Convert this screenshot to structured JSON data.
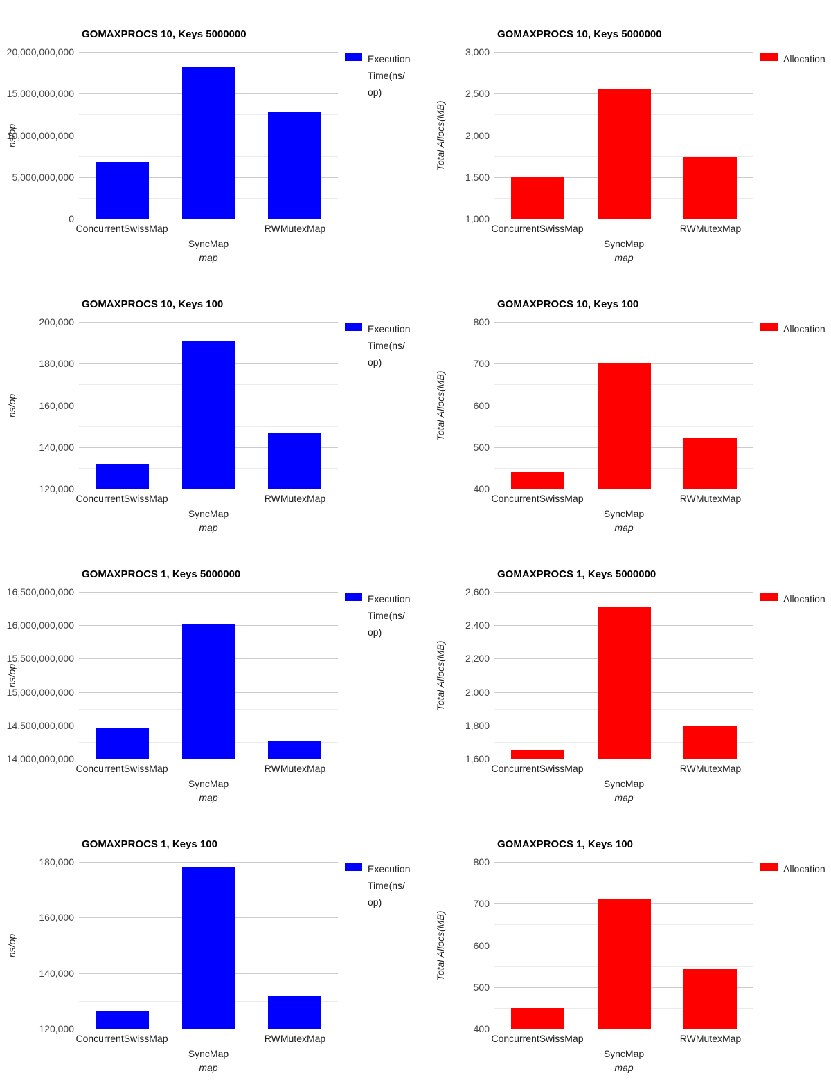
{
  "page": {
    "background": "#ffffff",
    "colors": {
      "execution_time_series": "#0000ff",
      "allocation_series": "#ff0000",
      "grid_major": "#cccccc",
      "grid_minor": "#ebebeb",
      "baseline": "#333333",
      "tick_text": "#444444",
      "label_text": "#222222",
      "title_text": "#000000"
    }
  },
  "chart_data": [
    {
      "type": "bar",
      "title": "GOMAXPROCS 10, Keys 5000000",
      "categories": [
        "ConcurrentSwissMap",
        "SyncMap",
        "RWMutexMap"
      ],
      "values": [
        6800000000,
        18200000000,
        12800000000
      ],
      "series_name": "Execution Time(ns/op)",
      "legend_lines": [
        "Execution",
        "Time(ns/",
        "op)"
      ],
      "legend_position": "right",
      "color": "#0000ff",
      "xlabel": "map",
      "ylabel": "ns/op",
      "ylim": [
        0,
        20000000000
      ],
      "ytick_step": 5000000000,
      "grid": true
    },
    {
      "type": "bar",
      "title": "GOMAXPROCS 10, Keys 5000000",
      "categories": [
        "ConcurrentSwissMap",
        "SyncMap",
        "RWMutexMap"
      ],
      "values": [
        1505,
        2550,
        1740
      ],
      "series_name": "Allocation",
      "legend_lines": [
        "Allocation"
      ],
      "legend_position": "right",
      "color": "#ff0000",
      "xlabel": "map",
      "ylabel": "Total Allocs(MB)",
      "ylim": [
        1000,
        3000
      ],
      "ytick_step": 500,
      "grid": true
    },
    {
      "type": "bar",
      "title": "GOMAXPROCS 10, Keys 100",
      "categories": [
        "ConcurrentSwissMap",
        "SyncMap",
        "RWMutexMap"
      ],
      "values": [
        132000,
        191000,
        147000
      ],
      "series_name": "Execution Time(ns/op)",
      "legend_lines": [
        "Execution",
        "Time(ns/",
        "op)"
      ],
      "legend_position": "right",
      "color": "#0000ff",
      "xlabel": "map",
      "ylabel": "ns/op",
      "ylim": [
        120000,
        200000
      ],
      "ytick_step": 20000,
      "grid": true
    },
    {
      "type": "bar",
      "title": "GOMAXPROCS 10, Keys 100",
      "categories": [
        "ConcurrentSwissMap",
        "SyncMap",
        "RWMutexMap"
      ],
      "values": [
        440,
        701,
        522
      ],
      "series_name": "Allocation",
      "legend_lines": [
        "Allocation"
      ],
      "legend_position": "right",
      "color": "#ff0000",
      "xlabel": "map",
      "ylabel": "Total Allocs(MB)",
      "ylim": [
        400,
        800
      ],
      "ytick_step": 100,
      "grid": true
    },
    {
      "type": "bar",
      "title": "GOMAXPROCS 1, Keys 5000000",
      "categories": [
        "ConcurrentSwissMap",
        "SyncMap",
        "RWMutexMap"
      ],
      "values": [
        14470000000,
        16010000000,
        14260000000
      ],
      "series_name": "Execution Time(ns/op)",
      "legend_lines": [
        "Execution",
        "Time(ns/",
        "op)"
      ],
      "legend_position": "right",
      "color": "#0000ff",
      "xlabel": "map",
      "ylabel": "ns/op",
      "ylim": [
        14000000000,
        16500000000
      ],
      "ytick_step": 500000000,
      "grid": true
    },
    {
      "type": "bar",
      "title": "GOMAXPROCS 1, Keys 5000000",
      "categories": [
        "ConcurrentSwissMap",
        "SyncMap",
        "RWMutexMap"
      ],
      "values": [
        1650,
        2510,
        1793
      ],
      "series_name": "Allocation",
      "legend_lines": [
        "Allocation"
      ],
      "legend_position": "right",
      "color": "#ff0000",
      "xlabel": "map",
      "ylabel": "Total Allocs(MB)",
      "ylim": [
        1600,
        2600
      ],
      "ytick_step": 200,
      "grid": true
    },
    {
      "type": "bar",
      "title": "GOMAXPROCS 1, Keys 100",
      "categories": [
        "ConcurrentSwissMap",
        "SyncMap",
        "RWMutexMap"
      ],
      "values": [
        126500,
        178000,
        132000
      ],
      "series_name": "Execution Time(ns/op)",
      "legend_lines": [
        "Execution",
        "Time(ns/",
        "op)"
      ],
      "legend_position": "right",
      "color": "#0000ff",
      "xlabel": "map",
      "ylabel": "ns/op",
      "ylim": [
        120000,
        180000
      ],
      "ytick_step": 20000,
      "grid": true
    },
    {
      "type": "bar",
      "title": "GOMAXPROCS 1, Keys 100",
      "categories": [
        "ConcurrentSwissMap",
        "SyncMap",
        "RWMutexMap"
      ],
      "values": [
        450,
        712,
        542
      ],
      "series_name": "Allocation",
      "legend_lines": [
        "Allocation"
      ],
      "legend_position": "right",
      "color": "#ff0000",
      "xlabel": "map",
      "ylabel": "Total Allocs(MB)",
      "ylim": [
        400,
        800
      ],
      "ytick_step": 100,
      "grid": true
    }
  ]
}
